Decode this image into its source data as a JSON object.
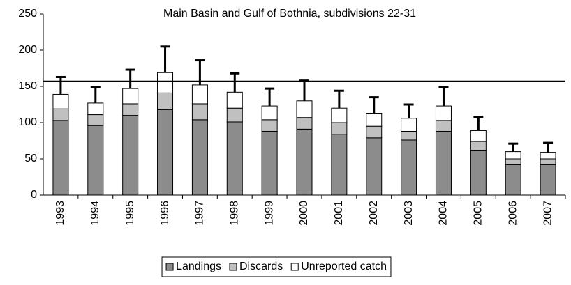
{
  "chart_data": {
    "type": "stacked_bar",
    "title": "Main Basin and Gulf of Bothnia, subdivisions 22-31",
    "categories": [
      "1993",
      "1994",
      "1995",
      "1996",
      "1997",
      "1998",
      "1999",
      "2000",
      "2001",
      "2002",
      "2003",
      "2004",
      "2005",
      "2006",
      "2007"
    ],
    "series": [
      {
        "name": "Landings",
        "color": "#8c8c8c",
        "values": [
          103,
          96,
          110,
          118,
          104,
          101,
          88,
          91,
          84,
          79,
          76,
          88,
          62,
          42,
          42
        ]
      },
      {
        "name": "Discards",
        "color": "#c0c0c0",
        "values": [
          16,
          15,
          16,
          23,
          22,
          19,
          16,
          16,
          16,
          16,
          12,
          15,
          12,
          8,
          8
        ]
      },
      {
        "name": "Unreported catch",
        "color": "#ffffff",
        "values": [
          20,
          16,
          21,
          28,
          26,
          22,
          19,
          23,
          20,
          18,
          18,
          20,
          15,
          10,
          9
        ]
      }
    ],
    "errors": [
      24,
      22,
      26,
      36,
      34,
      26,
      24,
      28,
      24,
      22,
      19,
      26,
      19,
      11,
      13
    ],
    "reference_line": 157,
    "ylim": [
      0,
      250
    ],
    "yticks": [
      0,
      50,
      100,
      150,
      200,
      250
    ],
    "legend": "bottom"
  }
}
